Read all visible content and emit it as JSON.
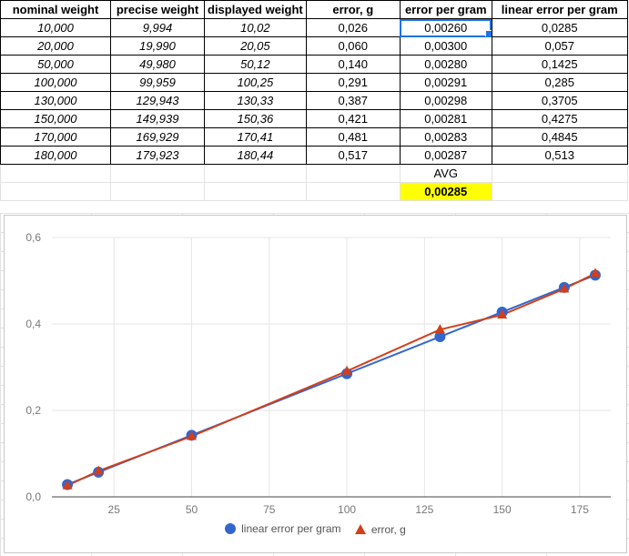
{
  "sheet": {
    "headers": [
      "nominal weight",
      "precise weight",
      "displayed weight",
      "error, g",
      "error per gram",
      "linear error per gram"
    ],
    "rows": [
      [
        "10,000",
        "9,994",
        "10,02",
        "0,026",
        "0,00260",
        "0,0285"
      ],
      [
        "20,000",
        "19,990",
        "20,05",
        "0,060",
        "0,00300",
        "0,057"
      ],
      [
        "50,000",
        "49,980",
        "50,12",
        "0,140",
        "0,00280",
        "0,1425"
      ],
      [
        "100,000",
        "99,959",
        "100,25",
        "0,291",
        "0,00291",
        "0,285"
      ],
      [
        "130,000",
        "129,943",
        "130,33",
        "0,387",
        "0,00298",
        "0,3705"
      ],
      [
        "150,000",
        "149,939",
        "150,36",
        "0,421",
        "0,00281",
        "0,4275"
      ],
      [
        "170,000",
        "169,929",
        "170,41",
        "0,481",
        "0,00283",
        "0,4845"
      ],
      [
        "180,000",
        "179,923",
        "180,44",
        "0,517",
        "0,00287",
        "0,513"
      ]
    ],
    "avg_label": "AVG",
    "avg_value": "0,00285"
  },
  "colors": {
    "blue_series": "#3366cc",
    "red_series": "#d23f1a",
    "highlight": "#ffff00",
    "selection": "#1a73e8"
  },
  "chart_data": {
    "type": "line",
    "x": [
      10,
      20,
      50,
      100,
      130,
      150,
      170,
      180
    ],
    "series": [
      {
        "name": "linear error per gram",
        "marker": "circle",
        "values": [
          0.0285,
          0.057,
          0.1425,
          0.285,
          0.3705,
          0.4275,
          0.4845,
          0.513
        ]
      },
      {
        "name": "error, g",
        "marker": "triangle",
        "values": [
          0.026,
          0.06,
          0.14,
          0.291,
          0.387,
          0.421,
          0.481,
          0.517
        ]
      }
    ],
    "xlim": [
      5,
      185
    ],
    "ylim": [
      0,
      0.6
    ],
    "x_ticks": [
      25,
      50,
      75,
      100,
      125,
      150,
      175
    ],
    "y_ticks": [
      0,
      0.2,
      0.4,
      0.6
    ],
    "x_tick_labels": [
      "25",
      "50",
      "75",
      "100",
      "125",
      "150",
      "175"
    ],
    "y_tick_labels": [
      "0,0",
      "0,2",
      "0,4",
      "0,6"
    ],
    "grid": true,
    "legend": "bottom"
  }
}
